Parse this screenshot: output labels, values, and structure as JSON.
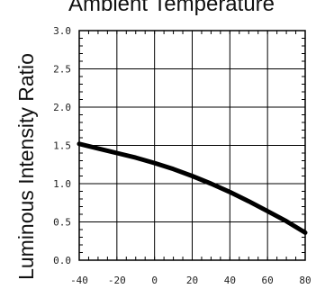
{
  "chart_data": {
    "type": "line",
    "title": "Ambient Temperature",
    "xlabel": "",
    "ylabel": "Luminous Intensity Ratio",
    "xlim": [
      -40,
      80
    ],
    "ylim": [
      0,
      3.0
    ],
    "x_ticks": [
      "-40",
      "-20",
      "0",
      "20",
      "40",
      "60",
      "80"
    ],
    "y_ticks": [
      "0.0",
      "0.5",
      "1.0",
      "1.5",
      "2.0",
      "2.5",
      "3.0"
    ],
    "grid": true,
    "series": [
      {
        "x": [
          -40,
          -30,
          -20,
          -10,
          0,
          10,
          20,
          30,
          40,
          50,
          60,
          70,
          80
        ],
        "values": [
          1.52,
          1.46,
          1.4,
          1.34,
          1.27,
          1.19,
          1.1,
          1.0,
          0.89,
          0.77,
          0.64,
          0.51,
          0.36
        ]
      }
    ],
    "colors": {
      "line": "#000000",
      "grid": "#000000",
      "axis": "#000000"
    }
  }
}
